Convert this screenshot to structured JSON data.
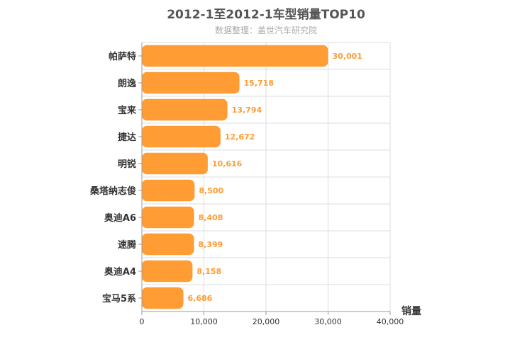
{
  "chart_data": {
    "type": "bar",
    "orientation": "horizontal",
    "title": "2012-1至2012-1车型销量TOP10",
    "subtitle": "数据整理：盖世汽车研究院",
    "xlabel": "销量",
    "ylabel": "",
    "categories": [
      "帕萨特",
      "朗逸",
      "宝来",
      "捷达",
      "明锐",
      "桑塔纳志俊",
      "奥迪A6",
      "速腾",
      "奥迪A4",
      "宝马5系"
    ],
    "values": [
      30001,
      15718,
      13794,
      12672,
      10616,
      8500,
      8408,
      8399,
      8158,
      6686
    ],
    "value_labels": [
      "30,001",
      "15,718",
      "13,794",
      "12,672",
      "10,616",
      "8,500",
      "8,408",
      "8,399",
      "8,158",
      "6,686"
    ],
    "xlim": [
      0,
      40000
    ],
    "x_ticks": [
      0,
      10000,
      20000,
      30000,
      40000
    ],
    "x_tick_labels": [
      "0",
      "10,000",
      "20,000",
      "30,000",
      "40,000"
    ],
    "grid": true,
    "legend": "none",
    "colors": {
      "bar": "#ff9c33",
      "label": "#ff9c33",
      "grid": "#dddddd",
      "axis": "#999999"
    }
  }
}
